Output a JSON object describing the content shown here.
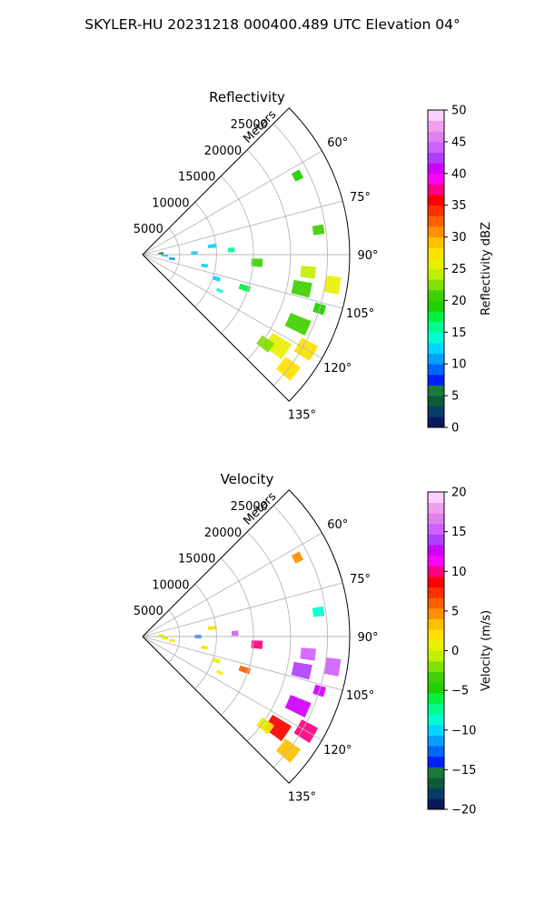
{
  "figure": {
    "title": "SKYLER-HU  20231218  000400.489 UTC Elevation 04°"
  },
  "chart_data": [
    {
      "type": "heatmap",
      "projection": "polar-sector",
      "title": "Reflectivity",
      "range_label": "Meters",
      "range_ticks": [
        "5000",
        "10000",
        "15000",
        "20000",
        "25000"
      ],
      "range_tick_values": [
        5000,
        10000,
        15000,
        20000,
        25000
      ],
      "rmax": 28000,
      "azimuth_ticks": [
        "60°",
        "75°",
        "90°",
        "105°",
        "120°",
        "135°"
      ],
      "azimuth_tick_values": [
        60,
        75,
        90,
        105,
        120,
        135
      ],
      "azimuth_range": [
        45,
        135
      ],
      "grid": true,
      "colorbar": {
        "label": "Reflectivity dBZ",
        "ticks": [
          "0",
          "5",
          "10",
          "15",
          "20",
          "25",
          "30",
          "35",
          "40",
          "45",
          "50"
        ],
        "tick_values": [
          0,
          5,
          10,
          15,
          20,
          25,
          30,
          35,
          40,
          45,
          50
        ],
        "vmin": 0,
        "vmax": 50,
        "colors": [
          "#0b1a5c",
          "#0a3b66",
          "#0d5a3a",
          "#1a7a3a",
          "#0020ff",
          "#0066ff",
          "#00a0ff",
          "#00d6ff",
          "#00ffd0",
          "#00ff90",
          "#00f040",
          "#20d000",
          "#40d000",
          "#80e000",
          "#c0f000",
          "#e8f000",
          "#ffe000",
          "#ffc000",
          "#ff9000",
          "#ff6000",
          "#ff3000",
          "#ff0000",
          "#ff0080",
          "#ff00ff",
          "#d000ff",
          "#b040ff",
          "#d060ff",
          "#e080f0",
          "#f0a0f0",
          "#fcd0fc"
        ]
      },
      "cells": [
        {
          "az": 86,
          "r": 2500,
          "dr": 700,
          "daz": 6,
          "value": 6
        },
        {
          "az": 92,
          "r": 3000,
          "dr": 900,
          "daz": 6,
          "value": 12
        },
        {
          "az": 98,
          "r": 4000,
          "dr": 800,
          "daz": 5,
          "value": 11
        },
        {
          "az": 88,
          "r": 7000,
          "dr": 900,
          "daz": 3,
          "value": 12
        },
        {
          "az": 83,
          "r": 9500,
          "dr": 1200,
          "daz": 3,
          "value": 13
        },
        {
          "az": 100,
          "r": 8500,
          "dr": 900,
          "daz": 3,
          "value": 12
        },
        {
          "az": 87,
          "r": 12000,
          "dr": 900,
          "daz": 3,
          "value": 15
        },
        {
          "az": 108,
          "r": 10500,
          "dr": 1000,
          "daz": 3,
          "value": 13
        },
        {
          "az": 94,
          "r": 15500,
          "dr": 1500,
          "daz": 4,
          "value": 20
        },
        {
          "az": 108,
          "r": 14500,
          "dr": 1500,
          "daz": 3,
          "value": 18
        },
        {
          "az": 115,
          "r": 11500,
          "dr": 900,
          "daz": 2,
          "value": 14
        },
        {
          "az": 63,
          "r": 23500,
          "dr": 1200,
          "daz": 3,
          "value": 19
        },
        {
          "az": 82,
          "r": 24000,
          "dr": 1500,
          "daz": 3,
          "value": 20
        },
        {
          "az": 96,
          "r": 22500,
          "dr": 2000,
          "daz": 4,
          "value": 24
        },
        {
          "az": 99,
          "r": 26000,
          "dr": 2000,
          "daz": 5,
          "value": 26
        },
        {
          "az": 102,
          "r": 22000,
          "dr": 2500,
          "daz": 5,
          "value": 21
        },
        {
          "az": 107,
          "r": 25000,
          "dr": 1500,
          "daz": 3,
          "value": 19
        },
        {
          "az": 114,
          "r": 23000,
          "dr": 3000,
          "daz": 5,
          "value": 21
        },
        {
          "az": 120,
          "r": 25500,
          "dr": 2500,
          "daz": 5,
          "value": 27
        },
        {
          "az": 124,
          "r": 22000,
          "dr": 3000,
          "daz": 6,
          "value": 25
        },
        {
          "az": 128,
          "r": 25000,
          "dr": 2500,
          "daz": 5,
          "value": 27
        },
        {
          "az": 126,
          "r": 20500,
          "dr": 2000,
          "daz": 4,
          "value": 22
        }
      ]
    },
    {
      "type": "heatmap",
      "projection": "polar-sector",
      "title": "Velocity",
      "range_label": "Meters",
      "range_ticks": [
        "5000",
        "10000",
        "15000",
        "20000",
        "25000"
      ],
      "range_tick_values": [
        5000,
        10000,
        15000,
        20000,
        25000
      ],
      "rmax": 28000,
      "azimuth_ticks": [
        "60°",
        "75°",
        "90°",
        "105°",
        "120°",
        "135°"
      ],
      "azimuth_tick_values": [
        60,
        75,
        90,
        105,
        120,
        135
      ],
      "azimuth_range": [
        45,
        135
      ],
      "grid": true,
      "colorbar": {
        "label": "Velocity (m/s)",
        "ticks": [
          "−20",
          "−15",
          "−10",
          "−5",
          "0",
          "5",
          "10",
          "15",
          "20"
        ],
        "tick_values": [
          -20,
          -15,
          -10,
          -5,
          0,
          5,
          10,
          15,
          20
        ],
        "vmin": -20,
        "vmax": 20,
        "colors": [
          "#0b1a5c",
          "#0a3b66",
          "#0d5a3a",
          "#1a7a3a",
          "#0020ff",
          "#0066ff",
          "#00a0ff",
          "#00d6ff",
          "#00ffd0",
          "#00ff90",
          "#00f040",
          "#20d000",
          "#40d000",
          "#80e000",
          "#c0f000",
          "#e8f000",
          "#ffe000",
          "#ffc000",
          "#ff9000",
          "#ff6000",
          "#ff3000",
          "#ff0000",
          "#ff0080",
          "#ff00ff",
          "#d000ff",
          "#b040ff",
          "#d060ff",
          "#e080f0",
          "#f0a0f0",
          "#fcd0fc"
        ]
      },
      "cells": [
        {
          "az": 86,
          "r": 2500,
          "dr": 700,
          "daz": 6,
          "value": 0
        },
        {
          "az": 94,
          "r": 3000,
          "dr": 900,
          "daz": 6,
          "value": 1
        },
        {
          "az": 98,
          "r": 4000,
          "dr": 800,
          "daz": 5,
          "value": 0
        },
        {
          "az": 90,
          "r": 7500,
          "dr": 900,
          "daz": 3,
          "value": -13
        },
        {
          "az": 83,
          "r": 9500,
          "dr": 1200,
          "daz": 3,
          "value": 2
        },
        {
          "az": 100,
          "r": 8500,
          "dr": 900,
          "daz": 3,
          "value": 2
        },
        {
          "az": 88,
          "r": 12500,
          "dr": 900,
          "daz": 3,
          "value": 15
        },
        {
          "az": 108,
          "r": 10500,
          "dr": 1000,
          "daz": 3,
          "value": 0
        },
        {
          "az": 94,
          "r": 15500,
          "dr": 1500,
          "daz": 4,
          "value": 10
        },
        {
          "az": 108,
          "r": 14500,
          "dr": 1500,
          "daz": 3,
          "value": 6
        },
        {
          "az": 115,
          "r": 11500,
          "dr": 900,
          "daz": 2,
          "value": 1
        },
        {
          "az": 63,
          "r": 23500,
          "dr": 1200,
          "daz": 3,
          "value": 5
        },
        {
          "az": 82,
          "r": 24000,
          "dr": 1500,
          "daz": 3,
          "value": -9
        },
        {
          "az": 96,
          "r": 22500,
          "dr": 2000,
          "daz": 4,
          "value": 15
        },
        {
          "az": 99,
          "r": 26000,
          "dr": 2000,
          "daz": 5,
          "value": 15
        },
        {
          "az": 102,
          "r": 22000,
          "dr": 2500,
          "daz": 5,
          "value": 14
        },
        {
          "az": 107,
          "r": 25000,
          "dr": 1500,
          "daz": 3,
          "value": 13
        },
        {
          "az": 114,
          "r": 23000,
          "dr": 3000,
          "daz": 5,
          "value": 12
        },
        {
          "az": 120,
          "r": 25500,
          "dr": 2500,
          "daz": 5,
          "value": 10
        },
        {
          "az": 124,
          "r": 22000,
          "dr": 3000,
          "daz": 6,
          "value": 8
        },
        {
          "az": 128,
          "r": 25000,
          "dr": 2500,
          "daz": 5,
          "value": 3
        },
        {
          "az": 126,
          "r": 20500,
          "dr": 2000,
          "daz": 4,
          "value": 1
        }
      ]
    }
  ]
}
